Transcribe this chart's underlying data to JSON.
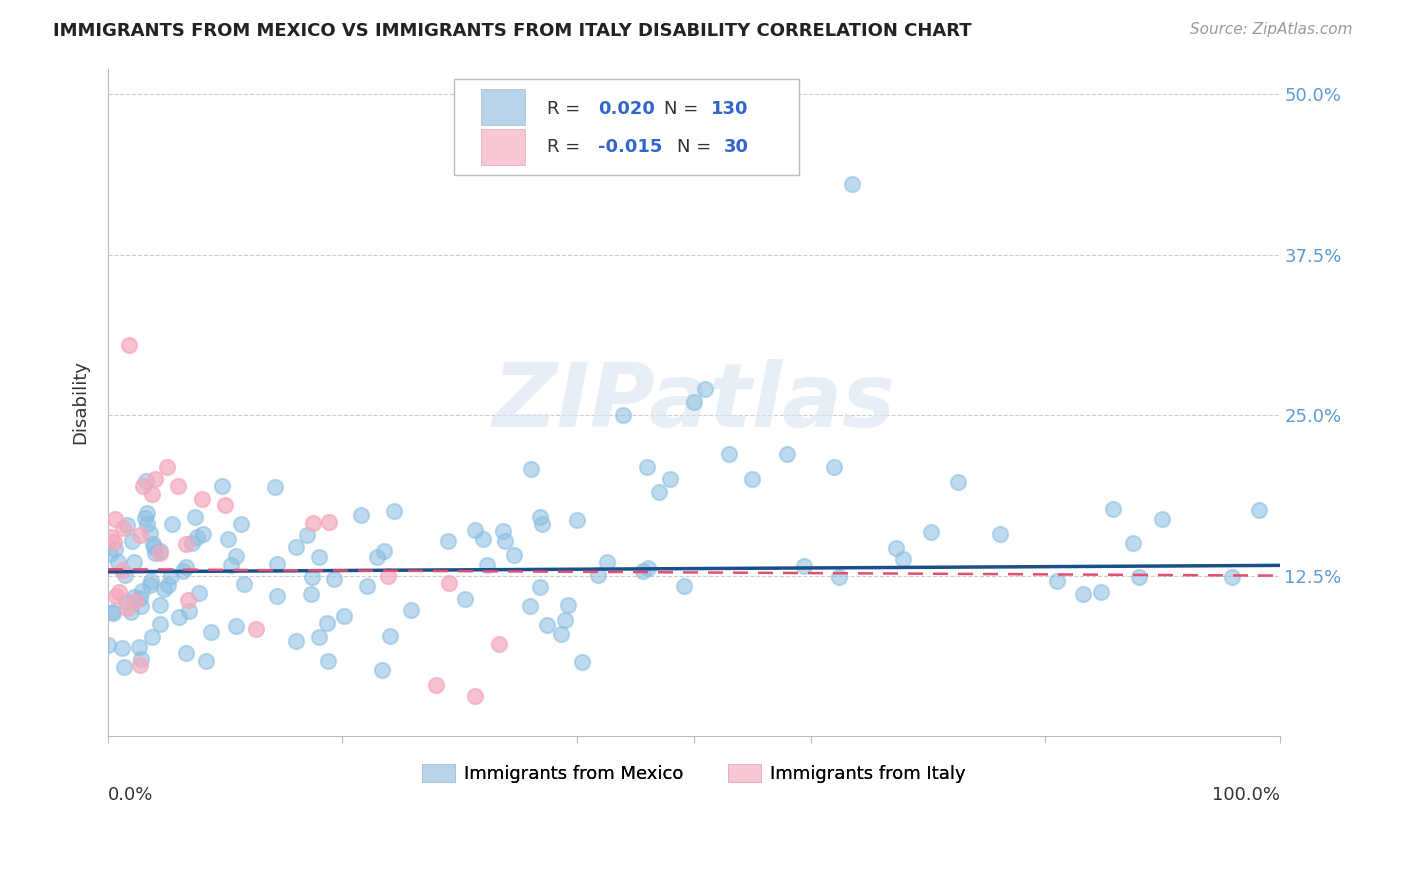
{
  "title": "IMMIGRANTS FROM MEXICO VS IMMIGRANTS FROM ITALY DISABILITY CORRELATION CHART",
  "source": "Source: ZipAtlas.com",
  "ylabel": "Disability",
  "ytick_values": [
    0.125,
    0.25,
    0.375,
    0.5
  ],
  "ytick_labels": [
    "12.5%",
    "25.0%",
    "37.5%",
    "50.0%"
  ],
  "xlim": [
    0.0,
    1.0
  ],
  "ylim": [
    0.0,
    0.52
  ],
  "legend_mexico_R": "0.020",
  "legend_mexico_N": "130",
  "legend_italy_R": "-0.015",
  "legend_italy_N": "30",
  "mexico_scatter_color": "#89bde0",
  "italy_scatter_color": "#f4a8bc",
  "legend_mexico_color": "#b8d4ea",
  "legend_italy_color": "#f9c8d5",
  "trendline_mexico_color": "#1a4f8a",
  "trendline_italy_color": "#e05070",
  "watermark": "ZIPatlas",
  "watermark_color": "#d8e4f0",
  "grid_color": "#cccccc",
  "title_color": "#222222",
  "source_color": "#999999",
  "label_color": "#555555",
  "right_tick_color": "#5b9bd5"
}
